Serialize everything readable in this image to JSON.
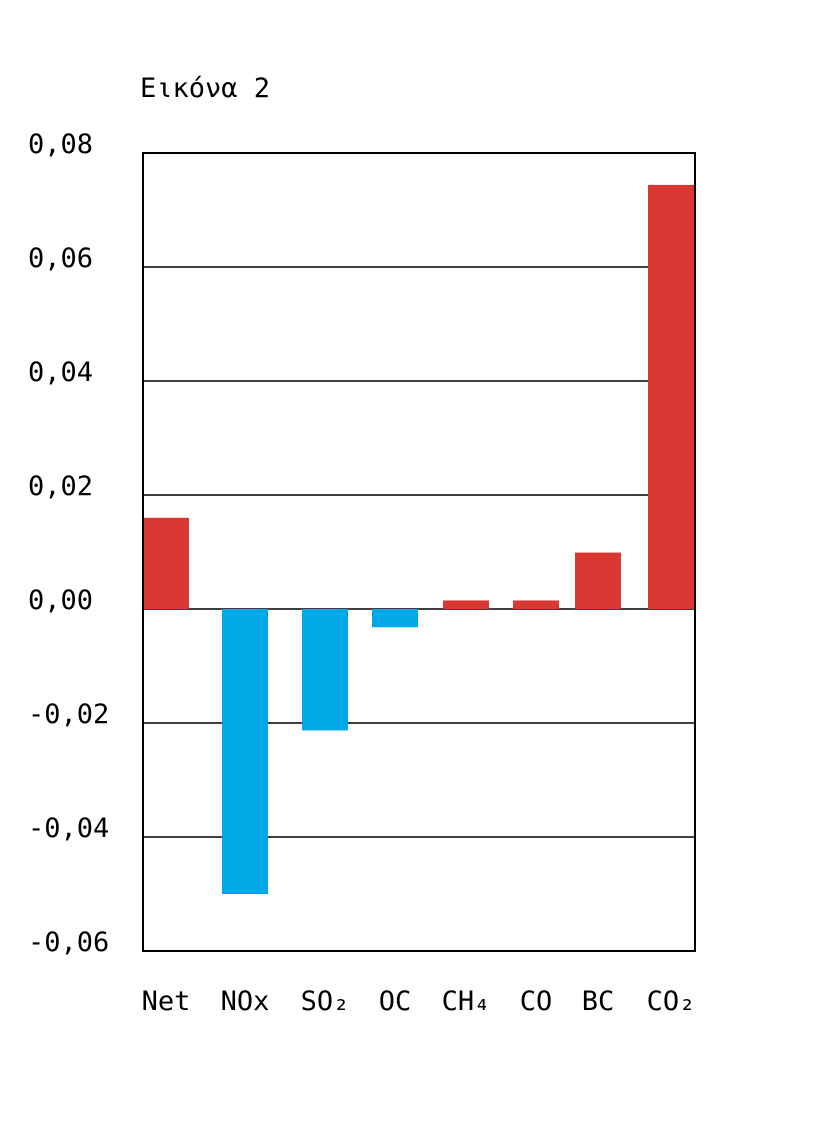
{
  "title": "Εικόνα 2",
  "chart_data": {
    "type": "bar",
    "title": "Εικόνα 2",
    "xlabel": "",
    "ylabel": "",
    "categories": [
      "Net",
      "NOx",
      "SO₂",
      "OC",
      "CH₄",
      "CO",
      "BC",
      "CO₂"
    ],
    "values": [
      0.016,
      -0.05,
      -0.0213,
      -0.0032,
      0.0015,
      0.0015,
      0.0099,
      0.0744
    ],
    "ylim": [
      -0.06,
      0.08
    ],
    "yticks": [
      0.08,
      0.06,
      0.04,
      0.02,
      0.0,
      -0.02,
      -0.04,
      -0.06
    ],
    "ytick_labels": [
      "0,08",
      "0,06",
      "0,04",
      "0,02",
      "0,00",
      "-0,02",
      "-0,04",
      "-0,06"
    ],
    "grid": true,
    "legend": "none",
    "colors": {
      "positive": "#d93832",
      "negative": "#00a9e6",
      "axis": "#000000"
    }
  }
}
